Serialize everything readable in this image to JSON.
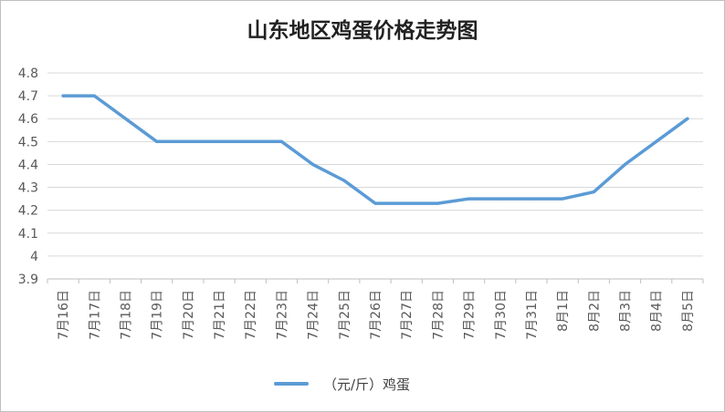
{
  "chart_data": {
    "type": "line",
    "title": "山东地区鸡蛋价格走势图",
    "xlabel": "",
    "ylabel": "",
    "ylim": [
      3.9,
      4.8
    ],
    "yticks": [
      "3.9",
      "4",
      "4.1",
      "4.2",
      "4.3",
      "4.4",
      "4.5",
      "4.6",
      "4.7",
      "4.8"
    ],
    "grid": true,
    "legend_position": "bottom",
    "categories": [
      "7月16日",
      "7月17日",
      "7月18日",
      "7月19日",
      "7月20日",
      "7月21日",
      "7月22日",
      "7月23日",
      "7月24日",
      "7月25日",
      "7月26日",
      "7月27日",
      "7月28日",
      "7月29日",
      "7月30日",
      "7月31日",
      "8月1日",
      "8月2日",
      "8月3日",
      "8月4日",
      "8月5日"
    ],
    "series": [
      {
        "name": "（元/斤）鸡蛋",
        "color": "#5b9bd5",
        "values": [
          4.7,
          4.7,
          4.6,
          4.5,
          4.5,
          4.5,
          4.5,
          4.5,
          4.4,
          4.33,
          4.23,
          4.23,
          4.23,
          4.25,
          4.25,
          4.25,
          4.25,
          4.28,
          4.4,
          4.5,
          4.6
        ]
      }
    ]
  }
}
